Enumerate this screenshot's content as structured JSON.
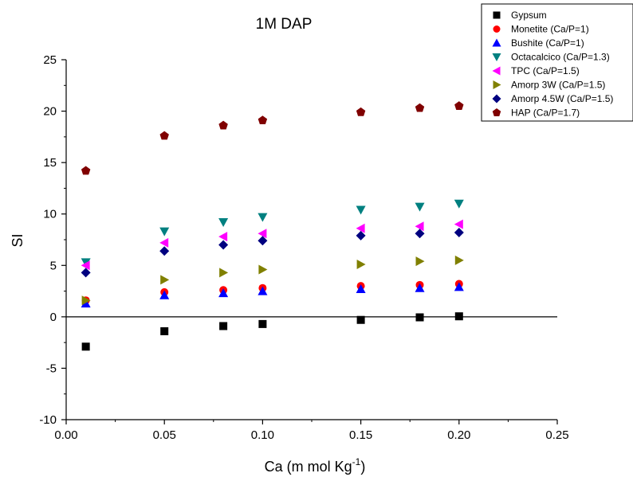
{
  "chart_data": {
    "type": "scatter",
    "title": "1M DAP",
    "xlabel_base": "Ca (m mol Kg",
    "xlabel_sup": "-1",
    "xlabel_end": ")",
    "ylabel": "SI",
    "xlim": [
      0.0,
      0.25
    ],
    "ylim": [
      -10,
      25
    ],
    "x_ticks": [
      "0.00",
      "0.05",
      "0.10",
      "0.15",
      "0.20",
      "0.25"
    ],
    "y_ticks": [
      "-10",
      "-5",
      "0",
      "5",
      "10",
      "15",
      "20",
      "25"
    ],
    "grid": false,
    "zero_line": true,
    "legend_position": "top-right",
    "x": [
      0.01,
      0.05,
      0.08,
      0.1,
      0.15,
      0.18,
      0.2
    ],
    "series": [
      {
        "name": "Gypsum",
        "marker": "square",
        "color": "#000000",
        "values": [
          -2.9,
          -1.4,
          -0.9,
          -0.7,
          -0.3,
          -0.05,
          0.05
        ]
      },
      {
        "name": "Monetite (Ca/P=1)",
        "marker": "circle",
        "color": "#ff0000",
        "values": [
          1.6,
          2.4,
          2.6,
          2.8,
          3.0,
          3.1,
          3.2
        ]
      },
      {
        "name": "Bushite (Ca/P=1)",
        "marker": "triangle-up",
        "color": "#0000ff",
        "values": [
          1.3,
          2.1,
          2.3,
          2.5,
          2.7,
          2.8,
          2.9
        ]
      },
      {
        "name": "Octacalcico (Ca/P=1.3)",
        "marker": "triangle-down",
        "color": "#008080",
        "values": [
          5.3,
          8.3,
          9.2,
          9.7,
          10.4,
          10.7,
          11.0
        ]
      },
      {
        "name": "TPC (Ca/P=1.5)",
        "marker": "triangle-left",
        "color": "#ff00ff",
        "values": [
          5.0,
          7.2,
          7.8,
          8.1,
          8.6,
          8.8,
          9.0
        ]
      },
      {
        "name": "Amorp 3W (Ca/P=1.5)",
        "marker": "triangle-right",
        "color": "#808000",
        "values": [
          1.6,
          3.6,
          4.3,
          4.6,
          5.1,
          5.4,
          5.5
        ]
      },
      {
        "name": "Amorp 4.5W (Ca/P=1.5)",
        "marker": "diamond",
        "color": "#000080",
        "values": [
          4.3,
          6.4,
          7.0,
          7.4,
          7.9,
          8.1,
          8.2
        ]
      },
      {
        "name": "HAP (Ca/P=1.7)",
        "marker": "pentagon",
        "color": "#800000",
        "values": [
          14.2,
          17.6,
          18.6,
          19.1,
          19.9,
          20.3,
          20.5
        ]
      }
    ]
  }
}
